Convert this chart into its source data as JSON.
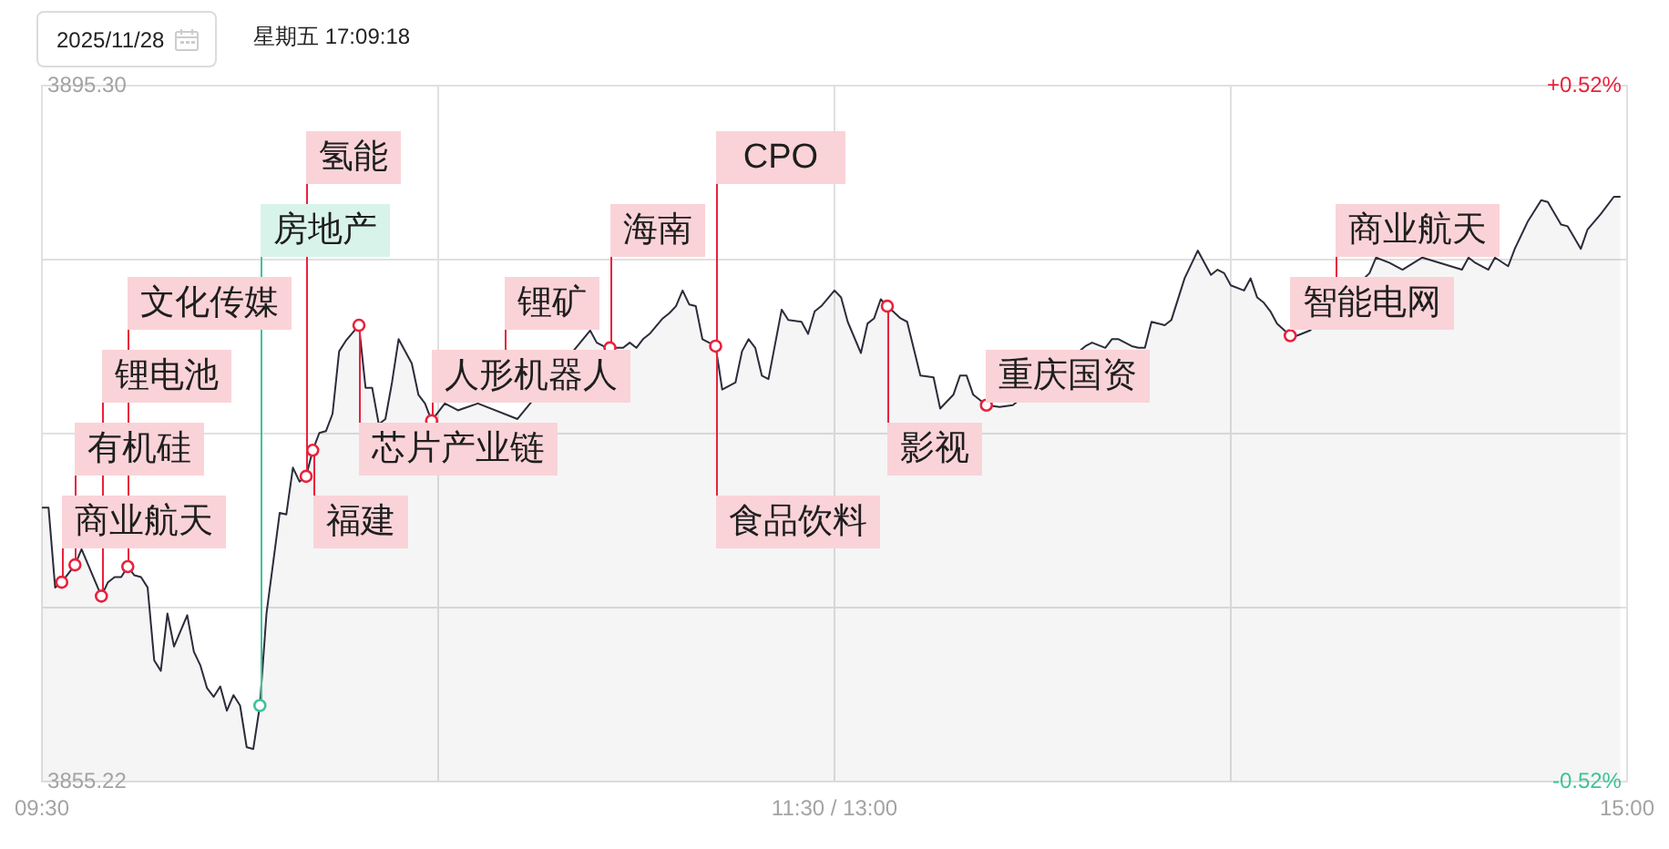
{
  "chart_data": {
    "type": "area",
    "title": "2025/11/28",
    "subtitle": "星期五 17:09:18",
    "categories": [
      "09:30",
      null,
      null,
      null,
      null,
      null,
      null,
      null,
      null,
      null,
      null,
      null,
      null,
      null,
      null,
      null,
      null,
      null,
      null,
      null,
      null,
      null,
      null,
      null,
      null,
      null,
      null,
      null,
      null,
      null,
      null,
      null,
      null,
      null,
      null,
      null,
      null,
      null,
      null,
      null,
      null,
      null,
      null,
      null,
      null,
      null,
      null,
      null,
      null,
      null,
      null,
      null,
      null,
      null,
      null,
      null,
      null,
      null,
      null,
      null,
      null,
      null,
      null,
      null,
      null,
      null,
      null,
      null,
      null,
      null,
      null,
      null,
      null,
      null,
      null,
      null,
      null,
      null,
      null,
      null,
      null,
      null,
      null,
      null,
      null,
      null,
      null,
      null,
      null,
      null,
      null,
      null,
      null,
      null,
      null,
      null,
      null,
      null,
      null,
      null,
      null,
      null,
      null,
      null,
      null,
      null,
      null,
      null,
      null,
      null,
      null,
      null,
      null,
      null,
      null,
      null,
      null,
      null,
      null,
      null,
      "11:30 / 13:00",
      null,
      null,
      null,
      null,
      null,
      null,
      null,
      null,
      null,
      null,
      null,
      null,
      null,
      null,
      null,
      null,
      null,
      null,
      null,
      null,
      null,
      null,
      null,
      null,
      null,
      null,
      null,
      null,
      null,
      null,
      null,
      null,
      null,
      null,
      null,
      null,
      null,
      null,
      null,
      null,
      null,
      null,
      null,
      null,
      null,
      null,
      null,
      null,
      null,
      null,
      null,
      null,
      null,
      null,
      null,
      null,
      null,
      null,
      null,
      null,
      null,
      null,
      null,
      null,
      null,
      null,
      null,
      null,
      null,
      null,
      null,
      null,
      null,
      null,
      null,
      null,
      null,
      null,
      null,
      null,
      null,
      null,
      null,
      null,
      null,
      null,
      null,
      null,
      null,
      null,
      null,
      null,
      null,
      null,
      null,
      null,
      null,
      null,
      null,
      null,
      null,
      null,
      null,
      null,
      null,
      null,
      null,
      null,
      null,
      null,
      null,
      null,
      null,
      null,
      null,
      null,
      null,
      null,
      null,
      "15:00"
    ],
    "series": [
      {
        "color": "#2c2c3a",
        "values": [
          3871.0,
          3871.0,
          3866.4,
          3866.7,
          null,
          3867.7,
          3868.6,
          null,
          null,
          3865.9,
          3866.7,
          3867.0,
          3867.0,
          3867.6,
          3867.1,
          3867.0,
          3866.4,
          3862.2,
          3861.6,
          3864.9,
          3863.0,
          null,
          3864.8,
          3862.7,
          3861.9,
          3860.6,
          3860.1,
          3860.7,
          3859.3,
          3860.2,
          3859.6,
          3857.2,
          3857.1,
          3859.6,
          3864.9,
          null,
          3870.7,
          3870.6,
          3873.3,
          3872.5,
          3872.8,
          3874.3,
          3875.3,
          3875.4,
          3876.4,
          3880.0,
          3880.6,
          null,
          3881.5,
          3877.9,
          3877.9,
          3875.8,
          3876.1,
          3878.2,
          3880.7,
          null,
          3879.3,
          3877.5,
          3877.0,
          3876.0,
          null,
          3877.0,
          null,
          3876.6,
          null,
          null,
          3877.0,
          null,
          null,
          null,
          null,
          null,
          3876.1,
          null,
          null,
          null,
          null,
          null,
          null,
          null,
          null,
          null,
          null,
          3881.2,
          3880.5,
          3880.3,
          3880.2,
          null,
          3880.2,
          3880.5,
          3880.2,
          3880.7,
          3881.0,
          null,
          3881.9,
          3882.2,
          3882.6,
          3883.5,
          3882.7,
          3882.6,
          3880.7,
          null,
          3880.3,
          3877.8,
          null,
          3878.2,
          3880.0,
          3880.7,
          3880.2,
          3878.6,
          3878.4,
          null,
          3882.4,
          3881.8,
          null,
          3881.7,
          3881.0,
          3882.3,
          3882.6,
          null,
          3883.5,
          3883.1,
          3881.7,
          null,
          3879.9,
          3881.6,
          3881.9,
          3883.0,
          3882.6,
          null,
          3881.9,
          3881.7,
          null,
          3878.6,
          null,
          3878.5,
          3876.7,
          null,
          3877.5,
          3878.6,
          3878.6,
          3877.5,
          null,
          3876.9,
          null,
          3876.8,
          null,
          3876.9,
          null,
          null,
          null,
          null,
          null,
          null,
          null,
          null,
          null,
          null,
          3880.3,
          3880.5,
          null,
          3880.2,
          3880.7,
          3880.7,
          null,
          3880.3,
          3880.2,
          3880.2,
          3881.7,
          null,
          3881.5,
          3881.8,
          null,
          3884.2,
          null,
          3885.8,
          null,
          3884.4,
          3884.7,
          3884.5,
          3883.8,
          null,
          3883.5,
          3884.2,
          3883.1,
          3882.8,
          3882.3,
          3881.6,
          null,
          3880.9,
          3880.9,
          null,
          3881.2,
          null,
          null,
          null,
          null,
          null,
          null,
          null,
          null,
          3884.5,
          3885.4,
          null,
          3885.1,
          null,
          3884.7,
          null,
          null,
          3885.4,
          null,
          null,
          null,
          null,
          null,
          3884.7,
          3885.4,
          3885.1,
          null,
          3884.7,
          3885.4,
          null,
          3884.9,
          3885.9,
          null,
          3887.5,
          null,
          3888.7,
          3888.6,
          null,
          3887.3,
          3887.2,
          null,
          3885.9,
          3887.0,
          null,
          3887.9,
          null,
          3888.9,
          3888.9,
          null
        ]
      },
      {
        "type": "scatter",
        "marker": "circle",
        "color": "#e8223c",
        "values": [
          null,
          null,
          null,
          3866.7,
          null,
          3867.7,
          null,
          null,
          null,
          3865.9,
          null,
          null,
          null,
          3867.6,
          null,
          null,
          null,
          null,
          null,
          null,
          null,
          null,
          null,
          null,
          null,
          null,
          null,
          null,
          null,
          null,
          null,
          null,
          null,
          null,
          null,
          null,
          null,
          null,
          null,
          null,
          3872.8,
          3874.3,
          null,
          null,
          null,
          null,
          null,
          null,
          3881.5,
          null,
          null,
          null,
          null,
          null,
          null,
          null,
          null,
          null,
          null,
          3876.0,
          null,
          null,
          null,
          null,
          null,
          null,
          null,
          null,
          null,
          null,
          null,
          null,
          null,
          null,
          null,
          null,
          null,
          null,
          null,
          null,
          null,
          null,
          null,
          null,
          null,
          null,
          3880.2,
          null,
          null,
          null,
          null,
          null,
          null,
          null,
          null,
          null,
          null,
          null,
          null,
          null,
          null,
          null,
          3880.3,
          null,
          null,
          null,
          null,
          null,
          null,
          null,
          null,
          null,
          null,
          null,
          null,
          null,
          null,
          null,
          null,
          null,
          null,
          null,
          null,
          null,
          null,
          null,
          null,
          null,
          3882.6,
          null,
          null,
          null,
          null,
          null,
          null,
          null,
          null,
          null,
          null,
          null,
          null,
          null,
          null,
          3876.9,
          null,
          null,
          null,
          null,
          null,
          null,
          null,
          null,
          null,
          null,
          null,
          null,
          null,
          null,
          null,
          null,
          null,
          null,
          null,
          null,
          null,
          null,
          null,
          null,
          null,
          null,
          null,
          null,
          null,
          null,
          null,
          null,
          null,
          null,
          null,
          null,
          null,
          null,
          null,
          null,
          null,
          null,
          null,
          null,
          null,
          3880.9,
          null,
          null,
          null,
          null,
          null,
          null,
          null,
          null,
          null,
          null,
          null,
          null,
          null,
          null,
          null,
          null,
          null,
          null,
          null,
          null,
          null,
          null,
          null,
          null,
          null,
          null,
          null,
          null,
          null,
          null,
          null,
          null,
          null,
          null,
          null,
          null,
          null,
          null,
          null,
          null,
          null,
          null,
          null,
          null,
          null,
          null,
          null,
          null,
          null,
          null,
          null
        ]
      },
      {
        "type": "scatter",
        "marker": "circle",
        "color": "#3cc497",
        "values": [
          null,
          null,
          null,
          null,
          null,
          null,
          null,
          null,
          null,
          null,
          null,
          null,
          null,
          null,
          null,
          null,
          null,
          null,
          null,
          null,
          null,
          null,
          null,
          null,
          null,
          null,
          null,
          null,
          null,
          null,
          null,
          null,
          null,
          3859.6,
          null,
          null,
          null,
          null,
          null,
          null,
          null,
          null,
          null,
          null,
          null,
          null,
          null,
          null,
          null,
          null,
          null,
          null,
          null,
          null,
          null,
          null,
          null,
          null,
          null,
          null,
          null,
          null,
          null,
          null,
          null,
          null,
          null,
          null,
          null,
          null,
          null,
          null,
          null,
          null,
          null,
          null,
          null,
          null,
          null,
          null,
          null,
          null,
          null,
          null,
          null,
          null,
          null,
          null,
          null,
          null,
          null,
          null,
          null,
          null,
          null,
          null,
          null,
          null,
          null,
          null,
          null,
          null,
          null,
          null,
          null,
          null,
          null,
          null,
          null,
          null,
          null,
          null,
          null,
          null,
          null,
          null,
          null,
          null,
          null,
          null,
          null,
          null,
          null,
          null,
          null,
          null,
          null,
          null,
          null,
          null,
          null,
          null,
          null,
          null,
          null,
          null,
          null,
          null,
          null,
          null,
          null,
          null,
          null,
          null,
          null,
          null,
          null,
          null,
          null,
          null,
          null,
          null,
          null,
          null,
          null,
          null,
          null,
          null,
          null,
          null,
          null,
          null,
          null,
          null,
          null,
          null,
          null,
          null,
          null,
          null,
          null,
          null,
          null,
          null,
          null,
          null,
          null,
          null,
          null,
          null,
          null,
          null,
          null,
          null,
          null,
          null,
          null,
          null,
          null,
          null,
          null,
          null,
          null,
          null,
          null,
          null,
          null,
          null,
          null,
          null,
          null,
          null,
          null,
          null,
          null,
          null,
          null,
          null,
          null,
          null,
          null,
          null,
          null,
          null,
          null,
          null,
          null,
          null,
          null,
          null,
          null,
          null,
          null,
          null,
          null,
          null,
          null,
          null,
          null,
          null,
          null,
          null,
          null,
          null,
          null,
          null,
          null,
          null,
          null,
          null,
          null
        ]
      }
    ],
    "ylim": [
      3855.22,
      3895.3
    ],
    "yticks": [
      3855.22,
      {
        "value": 3865.24,
        "label": null
      },
      {
        "value": 3875.26,
        "label": null
      },
      {
        "value": 3885.28,
        "label": null
      },
      {
        "value": 3895.3,
        "label": "3895.30"
      }
    ],
    "y2lim": [
      -0.52,
      0.52
    ],
    "y2ticks": [
      {
        "value": -0.52,
        "label": "-0.52%"
      },
      {
        "value": 0.52,
        "label": "+0.52%"
      }
    ],
    "grid": true,
    "annotations": [
      "商业航天",
      "有机硅",
      "锂电池",
      "文化传媒",
      "房地产",
      "氢能",
      "福建",
      "芯片产业链",
      "人形机器人",
      "锂矿",
      "海南",
      "CPO",
      "食品饮料",
      "影视",
      "重庆国资",
      "智能电网",
      "商业航天"
    ]
  }
}
